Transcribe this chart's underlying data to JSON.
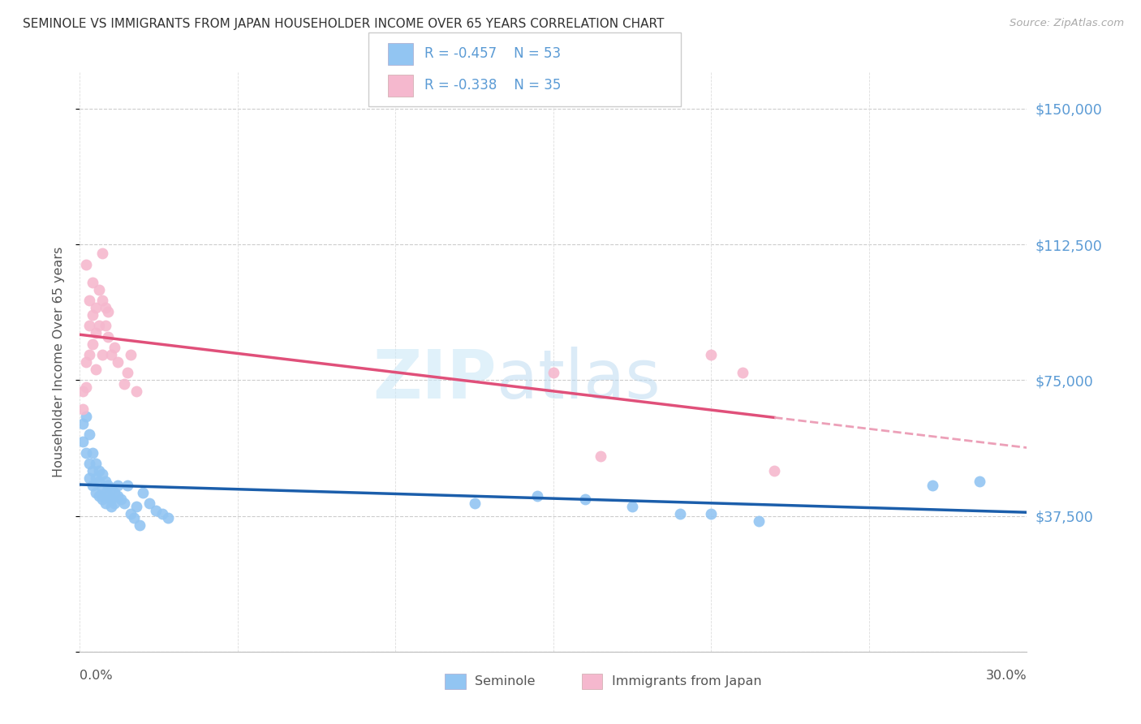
{
  "title": "SEMINOLE VS IMMIGRANTS FROM JAPAN HOUSEHOLDER INCOME OVER 65 YEARS CORRELATION CHART",
  "source": "Source: ZipAtlas.com",
  "ylabel": "Householder Income Over 65 years",
  "yticks": [
    0,
    37500,
    75000,
    112500,
    150000
  ],
  "ytick_labels": [
    "",
    "$37,500",
    "$75,000",
    "$112,500",
    "$150,000"
  ],
  "xmin": 0.0,
  "xmax": 0.3,
  "ymin": 0,
  "ymax": 160000,
  "seminole_color": "#92C5F2",
  "japan_color": "#F5B8CE",
  "seminole_line_color": "#1B5EAB",
  "japan_line_color": "#E0507A",
  "japan_dash_color": "#ECA0B8",
  "tick_label_color": "#5B9BD5",
  "legend_text_color": "#5B9BD5",
  "seminole_x": [
    0.001,
    0.001,
    0.002,
    0.002,
    0.003,
    0.003,
    0.003,
    0.004,
    0.004,
    0.004,
    0.005,
    0.005,
    0.005,
    0.006,
    0.006,
    0.006,
    0.007,
    0.007,
    0.007,
    0.008,
    0.008,
    0.008,
    0.009,
    0.009,
    0.01,
    0.01,
    0.01,
    0.011,
    0.011,
    0.012,
    0.012,
    0.013,
    0.014,
    0.015,
    0.016,
    0.017,
    0.018,
    0.019,
    0.02,
    0.022,
    0.024,
    0.026,
    0.028,
    0.125,
    0.145,
    0.16,
    0.175,
    0.19,
    0.2,
    0.215,
    0.27,
    0.285
  ],
  "seminole_y": [
    63000,
    58000,
    65000,
    55000,
    60000,
    52000,
    48000,
    55000,
    50000,
    46000,
    52000,
    48000,
    44000,
    50000,
    47000,
    43000,
    49000,
    45000,
    42000,
    47000,
    44000,
    41000,
    46000,
    43000,
    45000,
    42000,
    40000,
    44000,
    41000,
    46000,
    43000,
    42000,
    41000,
    46000,
    38000,
    37000,
    40000,
    35000,
    44000,
    41000,
    39000,
    38000,
    37000,
    41000,
    43000,
    42000,
    40000,
    38000,
    38000,
    36000,
    46000,
    47000
  ],
  "japan_x": [
    0.001,
    0.001,
    0.002,
    0.002,
    0.002,
    0.003,
    0.003,
    0.003,
    0.004,
    0.004,
    0.004,
    0.005,
    0.005,
    0.005,
    0.006,
    0.006,
    0.007,
    0.007,
    0.007,
    0.008,
    0.008,
    0.009,
    0.009,
    0.01,
    0.011,
    0.012,
    0.014,
    0.015,
    0.016,
    0.018,
    0.15,
    0.165,
    0.2,
    0.21,
    0.22
  ],
  "japan_y": [
    72000,
    67000,
    80000,
    73000,
    107000,
    82000,
    90000,
    97000,
    85000,
    93000,
    102000,
    88000,
    95000,
    78000,
    90000,
    100000,
    82000,
    97000,
    110000,
    90000,
    95000,
    87000,
    94000,
    82000,
    84000,
    80000,
    74000,
    77000,
    82000,
    72000,
    77000,
    54000,
    82000,
    77000,
    50000
  ]
}
